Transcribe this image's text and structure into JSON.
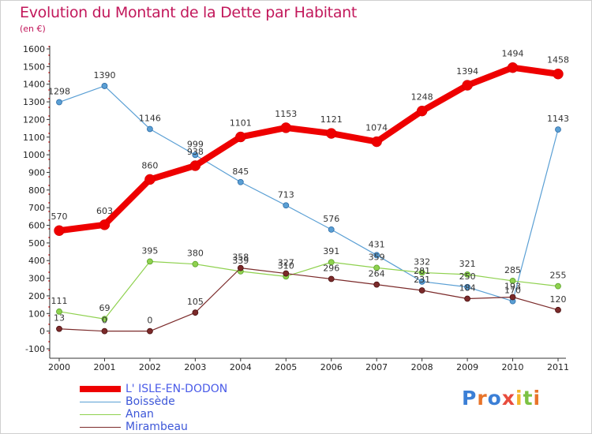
{
  "title": "Evolution du Montant de la Dette par Habitant",
  "subtitle": "(en €)",
  "logo": {
    "letters": [
      "P",
      "r",
      "o",
      "x",
      "i",
      "t",
      "i"
    ],
    "colors": [
      "#3b7fd6",
      "#e8742a",
      "#3b7fd6",
      "#e84c3d",
      "#f3b72b",
      "#7cc243",
      "#e8742a"
    ]
  },
  "chart_data": {
    "type": "line",
    "title": "Evolution du Montant de la Dette par Habitant",
    "xlabel": "",
    "ylabel": "(en €)",
    "x": [
      "2000",
      "2001",
      "2002",
      "2003",
      "2004",
      "2005",
      "2006",
      "2007",
      "2008",
      "2009",
      "2010",
      "2011"
    ],
    "ylim": [
      -100,
      1600
    ],
    "yticks": [
      "-100",
      "0",
      "100",
      "200",
      "300",
      "400",
      "500",
      "600",
      "700",
      "800",
      "900",
      "1000",
      "1100",
      "1200",
      "1300",
      "1400",
      "1500",
      "1600"
    ],
    "grid": false,
    "legend": "bottom-left",
    "series": [
      {
        "name": "L' ISLE-EN-DODON",
        "color": "#ee0000",
        "values": [
          570,
          603,
          860,
          938,
          1101,
          1153,
          1121,
          1074,
          1248,
          1394,
          1494,
          1458
        ],
        "labels": [
          "570",
          "603",
          "860",
          "938",
          "1101",
          "1153",
          "1121",
          "1074",
          "1248",
          "1394",
          "1494",
          "1458"
        ]
      },
      {
        "name": "Boissède",
        "color": "#5a9fd4",
        "values": [
          1298,
          1390,
          1146,
          999,
          845,
          713,
          576,
          431,
          281,
          250,
          170,
          1143
        ],
        "labels": [
          "1298",
          "1390",
          "1146",
          "999",
          "845",
          "713",
          "576",
          "431",
          "281",
          "250",
          "170",
          "1143"
        ]
      },
      {
        "name": "Anan",
        "color": "#8fd14f",
        "values": [
          111,
          69,
          395,
          380,
          339,
          310,
          391,
          359,
          332,
          321,
          285,
          255
        ],
        "labels": [
          "111",
          "69",
          "395",
          "380",
          "339",
          "310",
          "391",
          "359",
          "332",
          "321",
          "285",
          "255"
        ]
      },
      {
        "name": "Mirambeau",
        "color": "#7b2a2a",
        "values": [
          13,
          0,
          0,
          105,
          358,
          327,
          296,
          264,
          231,
          184,
          193,
          120
        ],
        "labels": [
          "13",
          "0",
          "0",
          "105",
          "358",
          "327",
          "296",
          "264",
          "231",
          "184",
          "193",
          "120"
        ]
      }
    ]
  }
}
